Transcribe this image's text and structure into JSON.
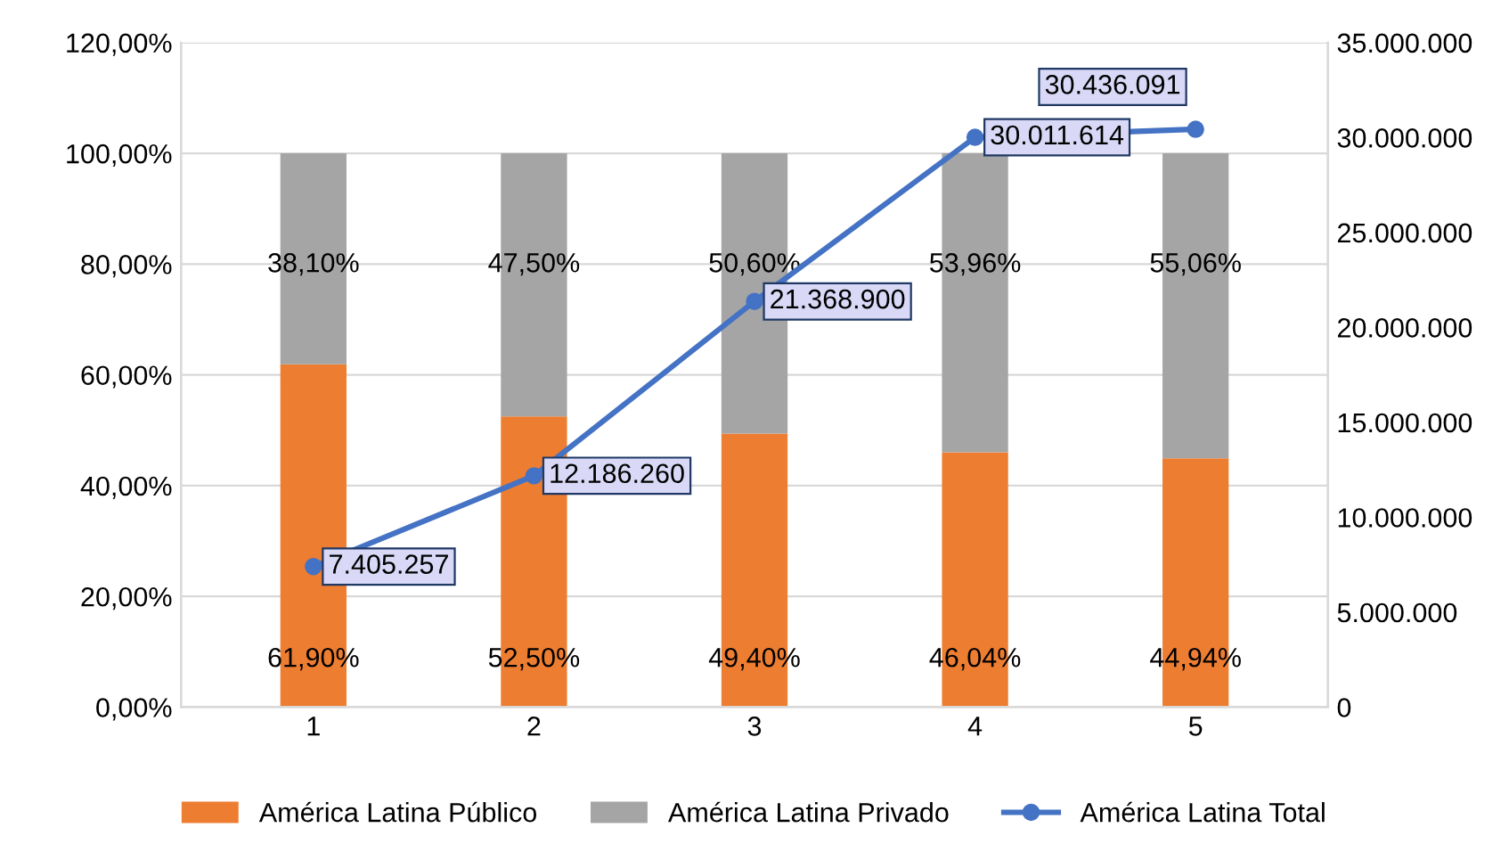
{
  "chart_data": {
    "type": "bar",
    "stacked": true,
    "categories": [
      "1",
      "2",
      "3",
      "4",
      "5"
    ],
    "series": [
      {
        "name": "América Latina Público",
        "color": "#ed7d31",
        "values": [
          61.9,
          52.5,
          49.4,
          46.04,
          44.94
        ],
        "value_labels": [
          "61,90%",
          "52,50%",
          "49,40%",
          "46,04%",
          "44,94%"
        ]
      },
      {
        "name": "América Latina Privado",
        "color": "#a5a5a5",
        "values": [
          38.1,
          47.5,
          50.6,
          53.96,
          55.06
        ],
        "value_labels": [
          "38,10%",
          "47,50%",
          "50,60%",
          "53,96%",
          "55,06%"
        ]
      },
      {
        "name": "América Latina Total",
        "type": "line",
        "axis": "y2",
        "color": "#4472c4",
        "marker": "circle",
        "line_style": "solid",
        "values": [
          7405257,
          12186260,
          21368900,
          30011614,
          30436091
        ],
        "value_labels": [
          "7.405.257",
          "12.186.260",
          "21.368.900",
          "30.011.614",
          "30.436.091"
        ]
      }
    ],
    "ylim": [
      0,
      120
    ],
    "yticks": [
      {
        "value": 0,
        "label": "0,00%"
      },
      {
        "value": 20,
        "label": "20,00%"
      },
      {
        "value": 40,
        "label": "40,00%"
      },
      {
        "value": 60,
        "label": "60,00%"
      },
      {
        "value": 80,
        "label": "80,00%"
      },
      {
        "value": 100,
        "label": "100,00%"
      },
      {
        "value": 120,
        "label": "120,00%"
      }
    ],
    "y2lim": [
      0,
      35000000
    ],
    "y2ticks": [
      0,
      {
        "value": 5000000,
        "label": "5.000.000"
      },
      {
        "value": 10000000,
        "label": "10.000.000"
      },
      {
        "value": 15000000,
        "label": "15.000.000"
      },
      {
        "value": 20000000,
        "label": "20.000.000"
      },
      {
        "value": 25000000,
        "label": "25.000.000"
      },
      {
        "value": 30000000,
        "label": "30.000.000"
      },
      {
        "value": 35000000,
        "label": "35.000.000"
      }
    ],
    "grid": "y",
    "legend": "bottom"
  }
}
